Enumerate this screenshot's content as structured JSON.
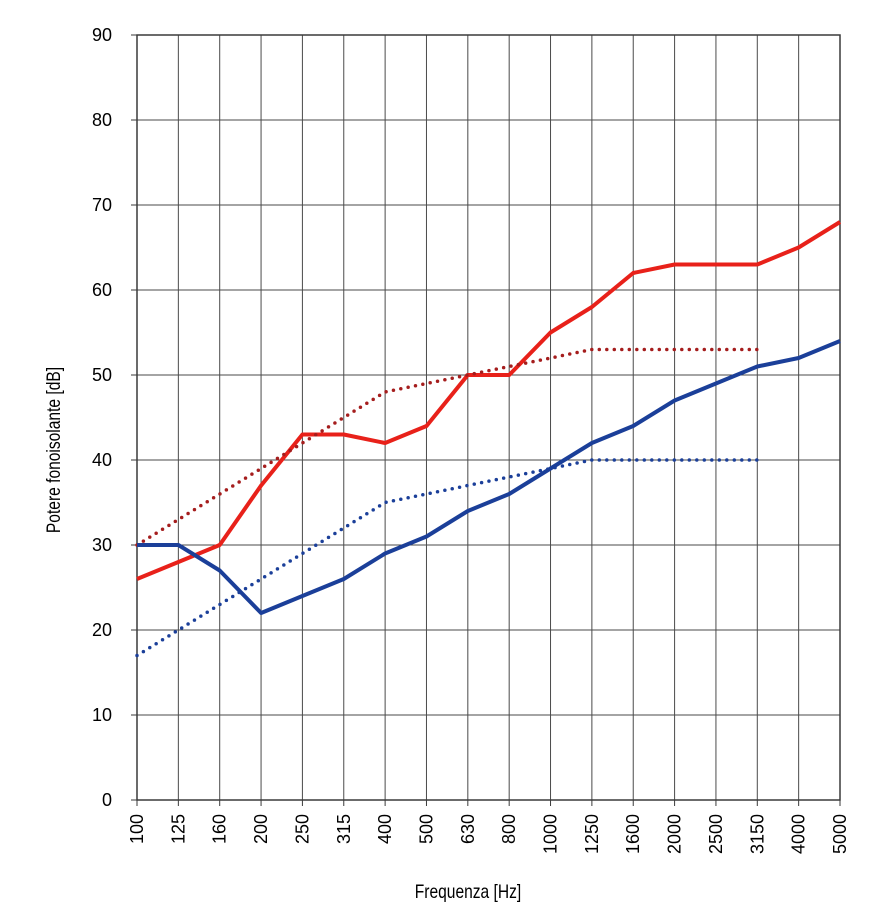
{
  "chart_data": {
    "type": "line",
    "title": "",
    "xlabel": "Frequenza [Hz]",
    "ylabel": "Potere fonoisolante [dB]",
    "categories": [
      "100",
      "125",
      "160",
      "200",
      "250",
      "315",
      "400",
      "500",
      "630",
      "800",
      "1000",
      "1250",
      "1600",
      "2000",
      "2500",
      "3150",
      "4000",
      "5000"
    ],
    "ylim": [
      0,
      90
    ],
    "yticks": [
      0,
      10,
      20,
      30,
      40,
      50,
      60,
      70,
      80,
      90
    ],
    "grid": true,
    "legend": "none",
    "series": [
      {
        "color": "#e8211a",
        "style": "solid",
        "values": [
          26,
          28,
          30,
          37,
          43,
          43,
          42,
          44,
          50,
          50,
          55,
          58,
          62,
          63,
          63,
          63,
          65,
          68
        ]
      },
      {
        "color": "#a51d1d",
        "style": "dotted",
        "values": [
          30,
          33,
          36,
          39,
          42,
          45,
          48,
          49,
          50,
          51,
          52,
          53,
          53,
          53,
          53,
          53,
          null,
          null
        ]
      },
      {
        "color": "#1b3f99",
        "style": "solid",
        "values": [
          30,
          30,
          27,
          22,
          24,
          26,
          29,
          31,
          34,
          36,
          39,
          42,
          44,
          47,
          49,
          51,
          52,
          54
        ]
      },
      {
        "color": "#1b3f99",
        "style": "dotted",
        "values": [
          17,
          20,
          23,
          26,
          29,
          32,
          35,
          36,
          37,
          38,
          39,
          40,
          40,
          40,
          40,
          40,
          null,
          null
        ]
      }
    ]
  }
}
